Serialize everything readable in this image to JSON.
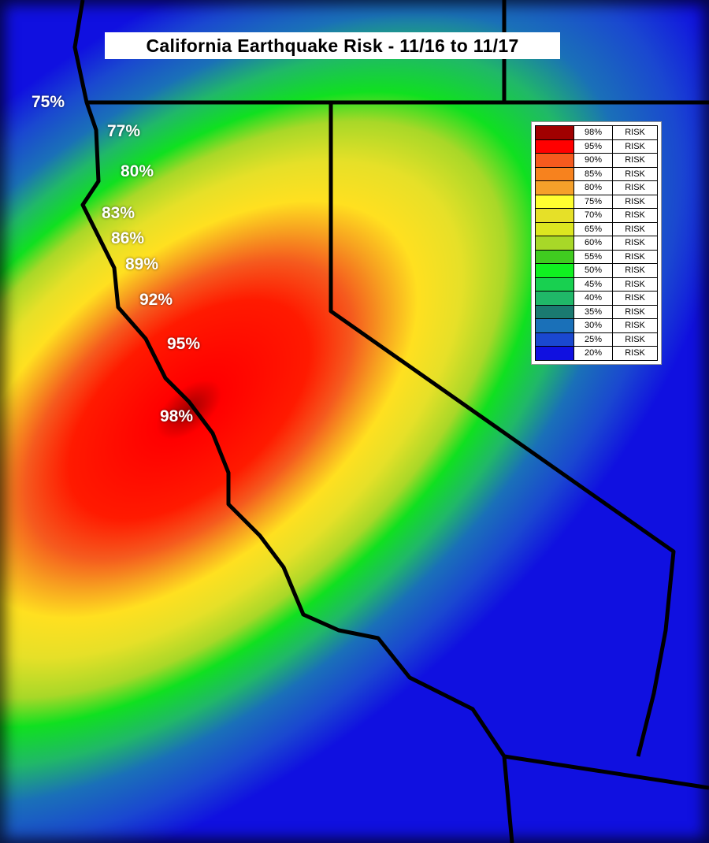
{
  "title": "California Earthquake Risk - 11/16 to 11/17",
  "coast_labels": [
    "75%",
    "77%",
    "80%",
    "83%",
    "86%",
    "89%",
    "92%",
    "95%",
    "98%"
  ],
  "legend": [
    {
      "value": "98%",
      "label": "RISK",
      "color": "#a00000"
    },
    {
      "value": "95%",
      "label": "RISK",
      "color": "#ff0000"
    },
    {
      "value": "90%",
      "label": "RISK",
      "color": "#f55a1e"
    },
    {
      "value": "85%",
      "label": "RISK",
      "color": "#f7821e"
    },
    {
      "value": "80%",
      "label": "RISK",
      "color": "#f5a02a"
    },
    {
      "value": "75%",
      "label": "RISK",
      "color": "#ffff30"
    },
    {
      "value": "70%",
      "label": "RISK",
      "color": "#e6e028"
    },
    {
      "value": "65%",
      "label": "RISK",
      "color": "#dce620"
    },
    {
      "value": "60%",
      "label": "RISK",
      "color": "#a8d828"
    },
    {
      "value": "55%",
      "label": "RISK",
      "color": "#40cc20"
    },
    {
      "value": "50%",
      "label": "RISK",
      "color": "#10f020"
    },
    {
      "value": "45%",
      "label": "RISK",
      "color": "#18d050"
    },
    {
      "value": "40%",
      "label": "RISK",
      "color": "#20b868"
    },
    {
      "value": "35%",
      "label": "RISK",
      "color": "#1a7a70"
    },
    {
      "value": "30%",
      "label": "RISK",
      "color": "#1a70b8"
    },
    {
      "value": "25%",
      "label": "RISK",
      "color": "#1a48d0"
    },
    {
      "value": "20%",
      "label": "RISK",
      "color": "#1010e0"
    }
  ]
}
